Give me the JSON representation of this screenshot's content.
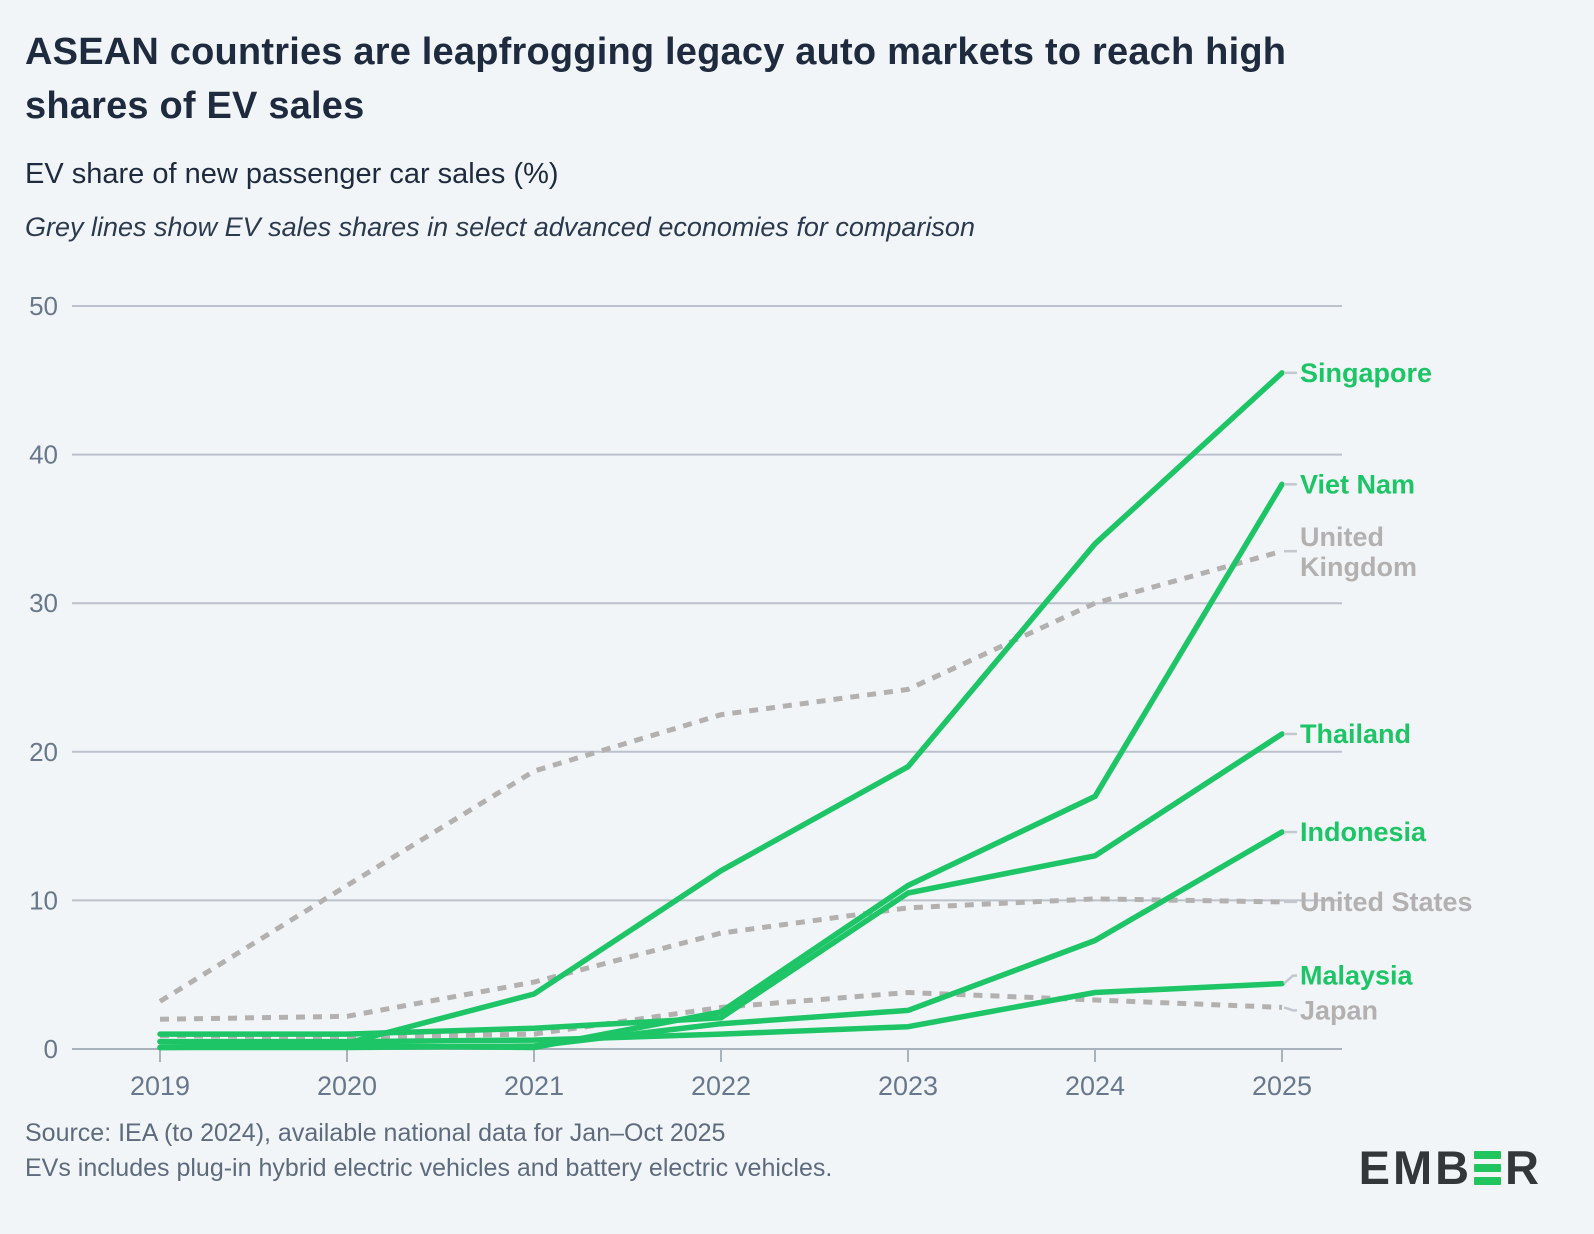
{
  "title_lines": [
    "ASEAN countries are leapfrogging legacy auto markets to reach high",
    "shares of EV sales"
  ],
  "subtitle": "EV share of new passenger car sales (%)",
  "note": "Grey lines show EV sales shares in select advanced economies for comparison",
  "source_lines": [
    "Source: IEA (to 2024), available national data for Jan–Oct 2025",
    "EVs includes plug-in hybrid electric vehicles and battery electric vehicles."
  ],
  "logo": {
    "pre": "EMB",
    "post": "R"
  },
  "colors": {
    "background": "#f2f5f8",
    "title_text": "#1e2b3e",
    "note_text": "#2c3a4e",
    "axis_text": "#68788c",
    "gridline": "#bcc2cb",
    "axis_line": "#a9b1bb",
    "source_text": "#5d6b7d",
    "asean_green": "#1dc566",
    "comparison_grey": "#b3b0b0",
    "leader": "#c2c8ce",
    "logo_dark": "#33373a",
    "logo_green": "#21c55d"
  },
  "chart_data": {
    "type": "line",
    "x": [
      2019,
      2020,
      2021,
      2022,
      2023,
      2024,
      2025
    ],
    "xlabel": "",
    "ylabel": "EV share of new passenger car sales (%)",
    "ylim": [
      0,
      50
    ],
    "yticks": [
      0,
      10,
      20,
      30,
      40,
      50
    ],
    "grid": true,
    "legend": "end-of-line labels",
    "series": [
      {
        "name": "United Kingdom",
        "label": "United\nKingdom",
        "group": "comparison",
        "style": "dashed",
        "values": [
          3.2,
          11.0,
          18.7,
          22.5,
          24.2,
          30.0,
          33.5
        ]
      },
      {
        "name": "United States",
        "label": "United States",
        "group": "comparison",
        "style": "dashed",
        "values": [
          2.0,
          2.2,
          4.5,
          7.8,
          9.5,
          10.1,
          9.9
        ]
      },
      {
        "name": "Japan",
        "label": "Japan",
        "group": "comparison",
        "style": "dashed",
        "values": [
          0.9,
          0.8,
          1.0,
          2.8,
          3.8,
          3.3,
          2.8
        ]
      },
      {
        "name": "Singapore",
        "label": "Singapore",
        "group": "asean",
        "style": "solid",
        "values": [
          0.5,
          0.4,
          3.7,
          12.0,
          19.0,
          34.0,
          45.5
        ]
      },
      {
        "name": "Viet Nam",
        "label": "Viet Nam",
        "group": "asean",
        "style": "solid",
        "values": [
          0.1,
          0.2,
          0.1,
          2.5,
          11.0,
          17.0,
          38.0
        ]
      },
      {
        "name": "Thailand",
        "label": "Thailand",
        "group": "asean",
        "style": "solid",
        "values": [
          1.0,
          1.0,
          1.4,
          2.1,
          10.5,
          13.0,
          21.2
        ]
      },
      {
        "name": "Indonesia",
        "label": "Indonesia",
        "group": "asean",
        "style": "solid",
        "values": [
          0.1,
          0.1,
          0.2,
          1.7,
          2.6,
          7.3,
          14.6
        ]
      },
      {
        "name": "Malaysia",
        "label": "Malaysia",
        "group": "asean",
        "style": "solid",
        "values": [
          0.5,
          0.5,
          0.6,
          1.0,
          1.5,
          3.8,
          4.4
        ]
      }
    ]
  }
}
